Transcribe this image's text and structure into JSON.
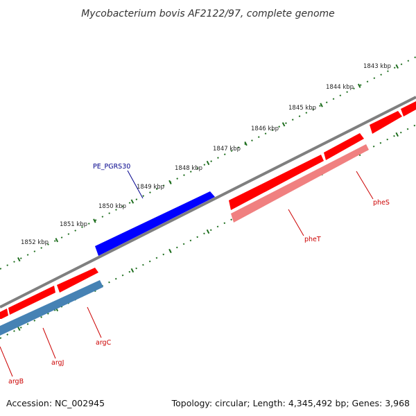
{
  "title": "Mycobacterium bovis AF2122/97, complete genome",
  "footer": {
    "accession": "Accession: NC_002945",
    "summary": "Topology: circular; Length: 4,345,492 bp; Genes: 3,968"
  },
  "colors": {
    "backbone": "#7f7f7f",
    "ticks": "#1e6e1e",
    "forward_gene": "#ff0000",
    "reverse_gene": "#f08080",
    "pe_pgrs": "#0000ff",
    "reverse_steel": "#4682b4",
    "label_red": "#cc0000",
    "label_blue": "#00008b"
  },
  "ticks": {
    "outer": [
      "1843 kbp",
      "1844 kbp",
      "1845 kbp",
      "1846 kbp",
      "1847 kbp",
      "1848 kbp",
      "1849 kbp",
      "1850 kbp",
      "1851 kbp",
      "1852 kbp"
    ]
  },
  "genes": {
    "pheS": "pheS",
    "pheT": "pheT",
    "argC": "argC",
    "argJ": "argJ",
    "argB": "argB",
    "pe_pgrs30": "PE_PGRS30"
  }
}
